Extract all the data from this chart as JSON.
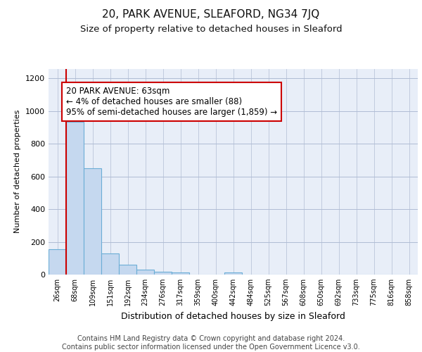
{
  "title": "20, PARK AVENUE, SLEAFORD, NG34 7JQ",
  "subtitle": "Size of property relative to detached houses in Sleaford",
  "xlabel": "Distribution of detached houses by size in Sleaford",
  "ylabel": "Number of detached properties",
  "categories": [
    "26sqm",
    "68sqm",
    "109sqm",
    "151sqm",
    "192sqm",
    "234sqm",
    "276sqm",
    "317sqm",
    "359sqm",
    "400sqm",
    "442sqm",
    "484sqm",
    "525sqm",
    "567sqm",
    "608sqm",
    "650sqm",
    "692sqm",
    "733sqm",
    "775sqm",
    "816sqm",
    "858sqm"
  ],
  "values": [
    155,
    935,
    650,
    128,
    60,
    32,
    18,
    13,
    0,
    0,
    13,
    0,
    0,
    0,
    0,
    0,
    0,
    0,
    0,
    0,
    0
  ],
  "bar_color": "#c5d8ef",
  "bar_edge_color": "#6baed6",
  "annotation_box_text": "20 PARK AVENUE: 63sqm\n← 4% of detached houses are smaller (88)\n95% of semi-detached houses are larger (1,859) →",
  "annotation_box_color": "#ffffff",
  "annotation_box_edgecolor": "#cc0000",
  "vline_color": "#cc0000",
  "ylim": [
    0,
    1260
  ],
  "yticks": [
    0,
    200,
    400,
    600,
    800,
    1000,
    1200
  ],
  "background_color": "#e8eef8",
  "title_fontsize": 11,
  "subtitle_fontsize": 9.5,
  "xlabel_fontsize": 9,
  "ylabel_fontsize": 8,
  "footer_text": "Contains HM Land Registry data © Crown copyright and database right 2024.\nContains public sector information licensed under the Open Government Licence v3.0.",
  "footer_fontsize": 7
}
